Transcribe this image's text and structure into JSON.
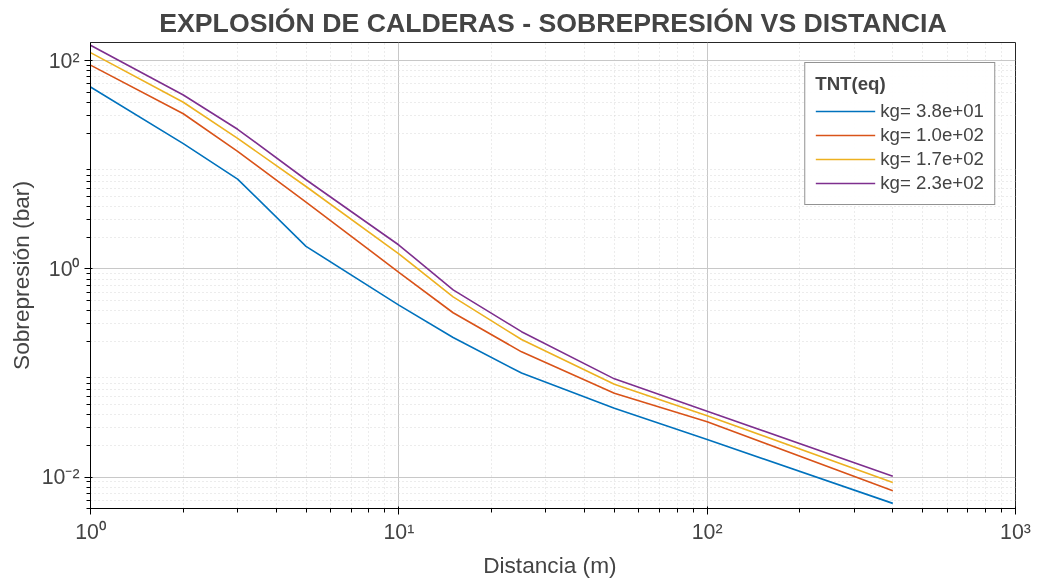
{
  "chart_data": {
    "type": "line",
    "title": "EXPLOSIÓN DE CALDERAS - SOBREPRESIÓN VS DISTANCIA",
    "xlabel": "Distancia  (m)",
    "ylabel": "Sobrepresión (bar)",
    "legend_title": "TNT(eq)",
    "x": [
      1,
      2,
      3,
      5,
      10,
      15,
      25,
      50,
      100,
      400
    ],
    "series": [
      {
        "name": "kg= 3.8e+01",
        "color": "#0072bd",
        "values": [
          56,
          16,
          7.3,
          1.65,
          0.45,
          0.22,
          0.1,
          0.046,
          0.023,
          0.0056
        ]
      },
      {
        "name": "kg= 1.0e+02",
        "color": "#d95319",
        "values": [
          91,
          31,
          13.5,
          4.4,
          0.93,
          0.38,
          0.16,
          0.064,
          0.034,
          0.0074
        ]
      },
      {
        "name": "kg= 1.7e+02",
        "color": "#edb120",
        "values": [
          120,
          40,
          18,
          6.2,
          1.4,
          0.54,
          0.21,
          0.078,
          0.039,
          0.0089
        ]
      },
      {
        "name": "kg= 2.3e+02",
        "color": "#7e2f8e",
        "values": [
          141,
          47,
          22,
          7.2,
          1.7,
          0.63,
          0.25,
          0.088,
          0.043,
          0.0102
        ]
      }
    ],
    "log": "xy",
    "xlim": [
      1,
      1000
    ],
    "ylim": [
      0.005,
      150
    ],
    "xticks": [
      {
        "value": 1,
        "label": "10⁰"
      },
      {
        "value": 10,
        "label": "10¹"
      },
      {
        "value": 100,
        "label": "10²"
      },
      {
        "value": 1000,
        "label": "10³"
      }
    ],
    "yticks": [
      {
        "value": 0.01,
        "label": "10⁻²"
      },
      {
        "value": 1,
        "label": "10⁰"
      },
      {
        "value": 100,
        "label": "10²"
      }
    ],
    "grid": true,
    "legend": "top right",
    "line_style": "solid",
    "marker": "none"
  }
}
